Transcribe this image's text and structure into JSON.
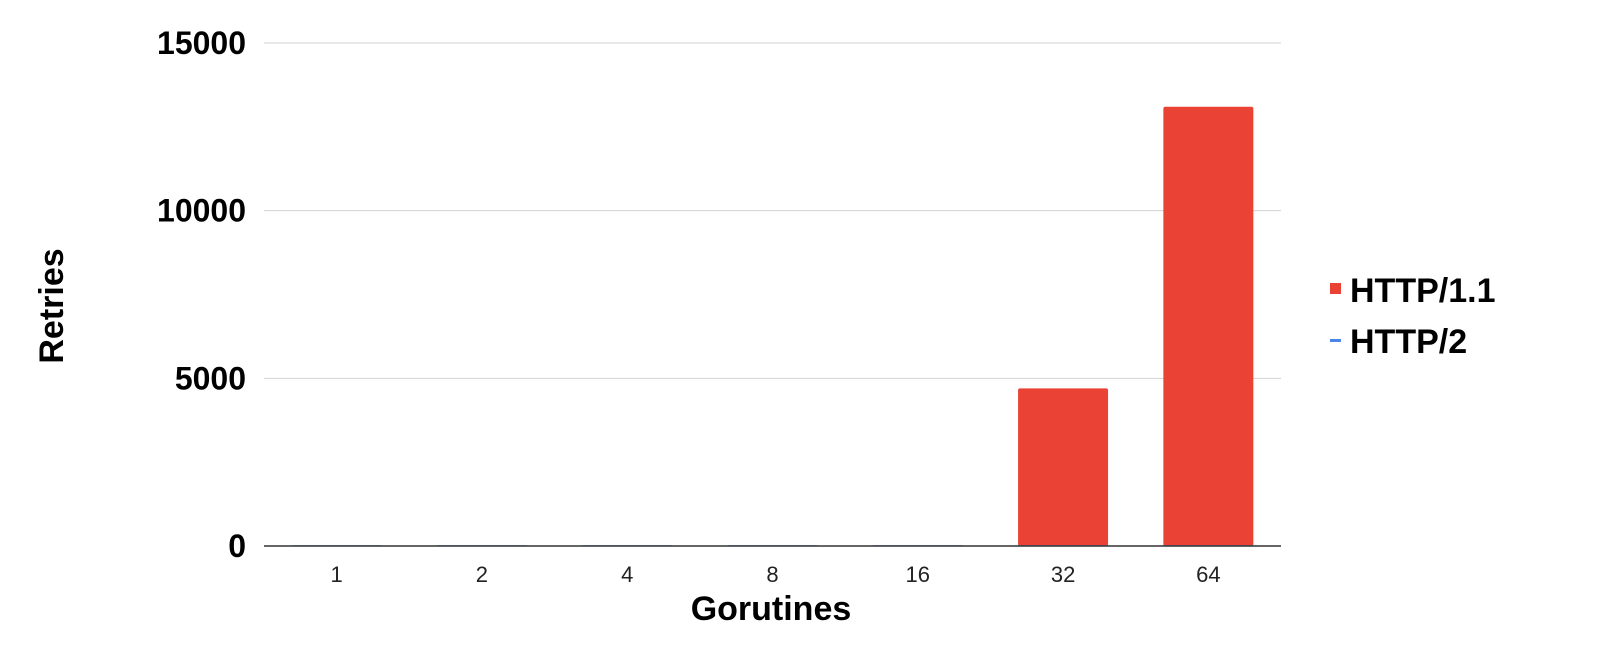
{
  "chart_data": {
    "type": "bar",
    "categories": [
      "1",
      "2",
      "4",
      "8",
      "16",
      "32",
      "64"
    ],
    "series": [
      {
        "name": "HTTP/1.1",
        "color": "#ea4335",
        "values": [
          0,
          0,
          0,
          0,
          0,
          4700,
          13100
        ]
      },
      {
        "name": "HTTP/2",
        "color": "#4a86e8",
        "values": [
          0,
          0,
          0,
          0,
          0,
          0,
          0
        ]
      }
    ],
    "title": "",
    "xlabel": "Gorutines",
    "ylabel": "Retries",
    "ylim": [
      0,
      15000
    ],
    "yticks": [
      "0",
      "5000",
      "10000",
      "15000"
    ],
    "grid": true,
    "legend_position": "right"
  }
}
